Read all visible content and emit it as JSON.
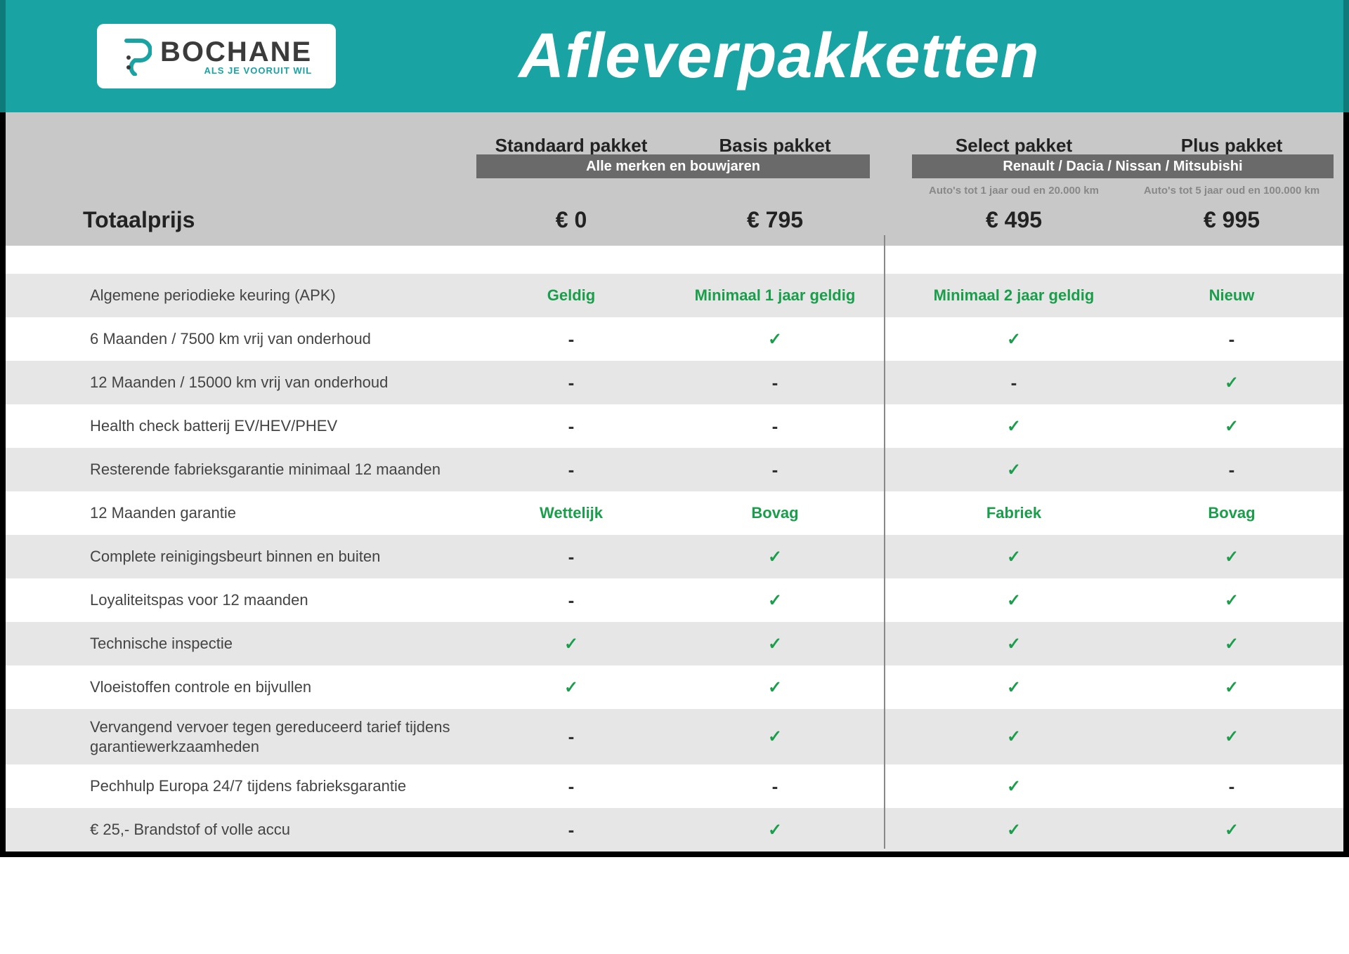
{
  "brand": {
    "name": "BOCHANE",
    "tagline": "ALS JE VOORUIT WIL"
  },
  "title": "Afleverpakketten",
  "colors": {
    "banner": "#1aa3a3",
    "header_grey": "#c8c8c8",
    "stripe_grey": "#e6e6e6",
    "tag_grey": "#6a6a6a",
    "green": "#1a9e4b"
  },
  "total_label": "Totaalprijs",
  "groups": [
    {
      "label": "Alle merken en bouwjaren"
    },
    {
      "label": "Renault / Dacia / Nissan / Mitsubishi"
    }
  ],
  "packages": [
    {
      "name": "Standaard pakket",
      "note": "",
      "price": "€ 0"
    },
    {
      "name": "Basis pakket",
      "note": "",
      "price": "€ 795"
    },
    {
      "name": "Select pakket",
      "note": "Auto's tot 1 jaar oud en 20.000 km",
      "price": "€ 495"
    },
    {
      "name": "Plus pakket",
      "note": "Auto's tot 5 jaar oud en 100.000 km",
      "price": "€ 995"
    }
  ],
  "features": [
    {
      "label": "Algemene periodieke keuring (APK)",
      "cells": [
        {
          "t": "text",
          "v": "Geldig"
        },
        {
          "t": "text",
          "v": "Minimaal 1 jaar geldig"
        },
        {
          "t": "text",
          "v": "Minimaal 2 jaar geldig"
        },
        {
          "t": "text",
          "v": "Nieuw"
        }
      ]
    },
    {
      "label": "6 Maanden / 7500 km vrij van onderhoud",
      "cells": [
        {
          "t": "dash"
        },
        {
          "t": "check"
        },
        {
          "t": "check"
        },
        {
          "t": "dash"
        }
      ]
    },
    {
      "label": "12 Maanden / 15000 km vrij van onderhoud",
      "cells": [
        {
          "t": "dash"
        },
        {
          "t": "dash"
        },
        {
          "t": "dash"
        },
        {
          "t": "check"
        }
      ]
    },
    {
      "label": "Health check batterij EV/HEV/PHEV",
      "cells": [
        {
          "t": "dash"
        },
        {
          "t": "dash"
        },
        {
          "t": "check"
        },
        {
          "t": "check"
        }
      ]
    },
    {
      "label": "Resterende fabrieksgarantie minimaal 12 maanden",
      "cells": [
        {
          "t": "dash"
        },
        {
          "t": "dash"
        },
        {
          "t": "check"
        },
        {
          "t": "dash"
        }
      ]
    },
    {
      "label": "12 Maanden  garantie",
      "cells": [
        {
          "t": "text",
          "v": "Wettelijk"
        },
        {
          "t": "text",
          "v": "Bovag"
        },
        {
          "t": "text",
          "v": "Fabriek"
        },
        {
          "t": "text",
          "v": "Bovag"
        }
      ]
    },
    {
      "label": "Complete reinigingsbeurt binnen en buiten",
      "cells": [
        {
          "t": "dash"
        },
        {
          "t": "check"
        },
        {
          "t": "check"
        },
        {
          "t": "check"
        }
      ]
    },
    {
      "label": "Loyaliteitspas voor 12 maanden",
      "cells": [
        {
          "t": "dash"
        },
        {
          "t": "check"
        },
        {
          "t": "check"
        },
        {
          "t": "check"
        }
      ]
    },
    {
      "label": "Technische inspectie",
      "cells": [
        {
          "t": "check"
        },
        {
          "t": "check"
        },
        {
          "t": "check"
        },
        {
          "t": "check"
        }
      ]
    },
    {
      "label": "Vloeistoffen controle en bijvullen",
      "cells": [
        {
          "t": "check"
        },
        {
          "t": "check"
        },
        {
          "t": "check"
        },
        {
          "t": "check"
        }
      ]
    },
    {
      "label": "Vervangend vervoer tegen gereduceerd tarief tijdens garantiewerkzaamheden",
      "cells": [
        {
          "t": "dash"
        },
        {
          "t": "check"
        },
        {
          "t": "check"
        },
        {
          "t": "check"
        }
      ]
    },
    {
      "label": "Pechhulp Europa 24/7 tijdens fabrieksgarantie",
      "cells": [
        {
          "t": "dash"
        },
        {
          "t": "dash"
        },
        {
          "t": "check"
        },
        {
          "t": "dash"
        }
      ]
    },
    {
      "label": "€ 25,- Brandstof of  volle accu",
      "cells": [
        {
          "t": "dash"
        },
        {
          "t": "check"
        },
        {
          "t": "check"
        },
        {
          "t": "check"
        }
      ]
    }
  ]
}
